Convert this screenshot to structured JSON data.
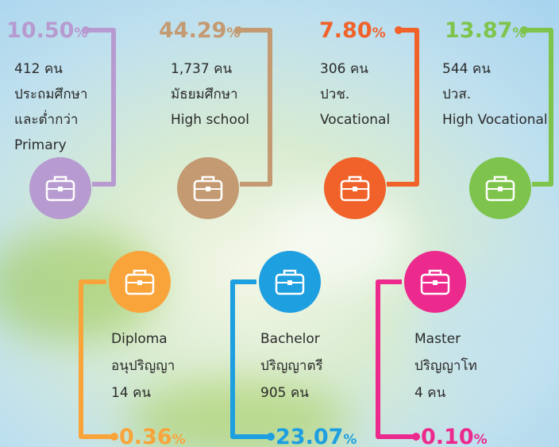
{
  "items": [
    {
      "percent": "10.50",
      "unit": "%",
      "count": "412 คน",
      "lines": [
        "ประถมศึกษา",
        "และต่ำกว่า",
        "Primary"
      ],
      "color": "#b79bd0"
    },
    {
      "percent": "44.29",
      "unit": "%",
      "count": "1,737 คน",
      "lines": [
        "มัธยมศึกษา",
        "High school"
      ],
      "color": "#c49a72"
    },
    {
      "percent": "7.80",
      "unit": "%",
      "count": "306 คน",
      "lines": [
        "ปวช.",
        "Vocational"
      ],
      "color": "#f0622a"
    },
    {
      "percent": "13.87",
      "unit": "%",
      "count": "544 คน",
      "lines": [
        "ปวส.",
        "High Vocational"
      ],
      "color": "#7ec44c"
    },
    {
      "percent": "0.36",
      "unit": "%",
      "count": "14 คน",
      "lines": [
        "Diploma",
        "อนุปริญญา"
      ],
      "color": "#f9a43b"
    },
    {
      "percent": "23.07",
      "unit": "%",
      "count": "905 คน",
      "lines": [
        "Bachelor",
        "ปริญญาตรี"
      ],
      "color": "#1e9fe0"
    },
    {
      "percent": "0.10",
      "unit": "%",
      "count": "4 คน",
      "lines": [
        "Master",
        "ปริญญาโท"
      ],
      "color": "#ec2a8e"
    }
  ]
}
